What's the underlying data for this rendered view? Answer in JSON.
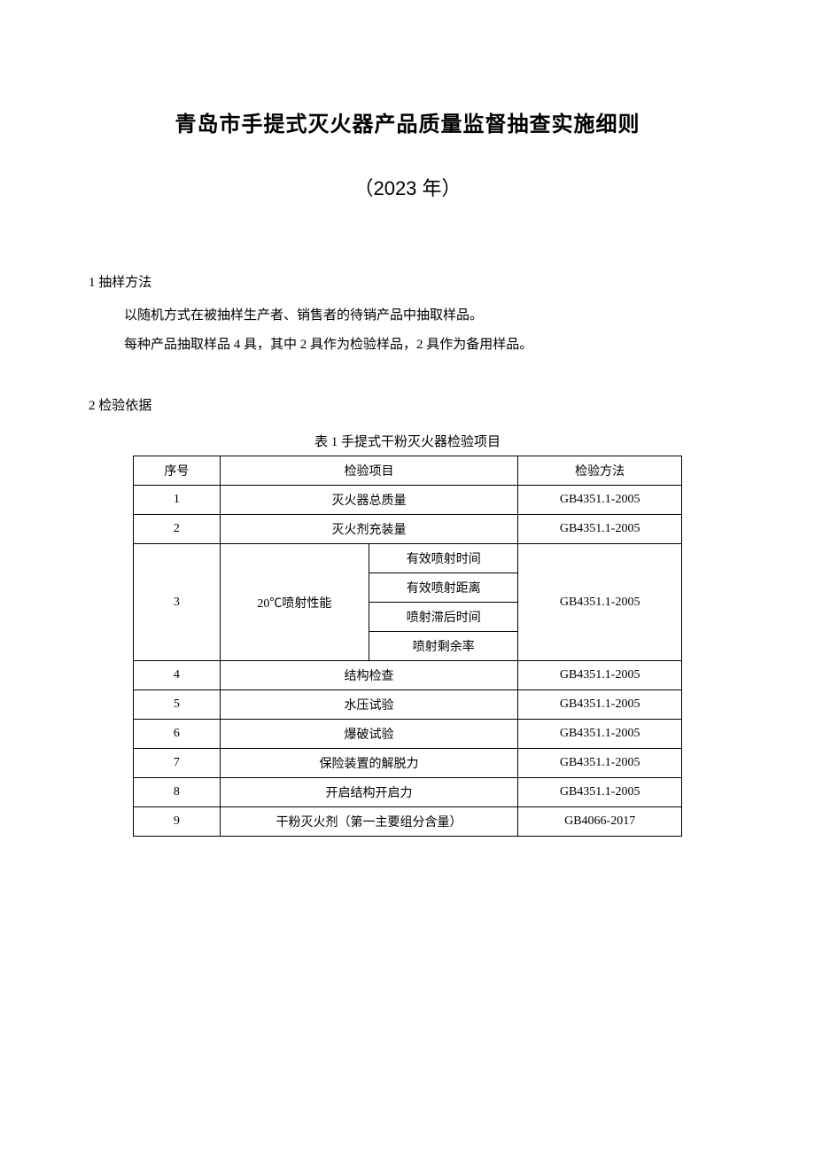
{
  "title": "青岛市手提式灭火器产品质量监督抽查实施细则",
  "year": "（2023 年）",
  "section1": {
    "heading": "1 抽样方法",
    "p1": "以随机方式在被抽样生产者、销售者的待销产品中抽取样品。",
    "p2": "每种产品抽取样品 4 具，其中 2 具作为检验样品，2 具作为备用样品。"
  },
  "section2": {
    "heading": "2 检验依据",
    "table_caption": "表 1 手提式干粉灭火器检验项目",
    "header": {
      "seq": "序号",
      "item": "检验项目",
      "method": "检验方法"
    },
    "rows": {
      "r1": {
        "seq": "1",
        "item": "灭火器总质量",
        "method": "GB4351.1-2005"
      },
      "r2": {
        "seq": "2",
        "item": "灭火剂充装量",
        "method": "GB4351.1-2005"
      },
      "r3": {
        "seq": "3",
        "item_main": "20℃喷射性能",
        "sub1": "有效喷射时间",
        "sub2": "有效喷射距离",
        "sub3": "喷射滞后时间",
        "sub4": "喷射剩余率",
        "method": "GB4351.1-2005"
      },
      "r4": {
        "seq": "4",
        "item": "结构检查",
        "method": "GB4351.1-2005"
      },
      "r5": {
        "seq": "5",
        "item": "水压试验",
        "method": "GB4351.1-2005"
      },
      "r6": {
        "seq": "6",
        "item": "爆破试验",
        "method": "GB4351.1-2005"
      },
      "r7": {
        "seq": "7",
        "item": "保险装置的解脱力",
        "method": "GB4351.1-2005"
      },
      "r8": {
        "seq": "8",
        "item": "开启结构开启力",
        "method": "GB4351.1-2005"
      },
      "r9": {
        "seq": "9",
        "item": "干粉灭火剂（第一主要组分含量）",
        "method": "GB4066-2017"
      }
    }
  }
}
